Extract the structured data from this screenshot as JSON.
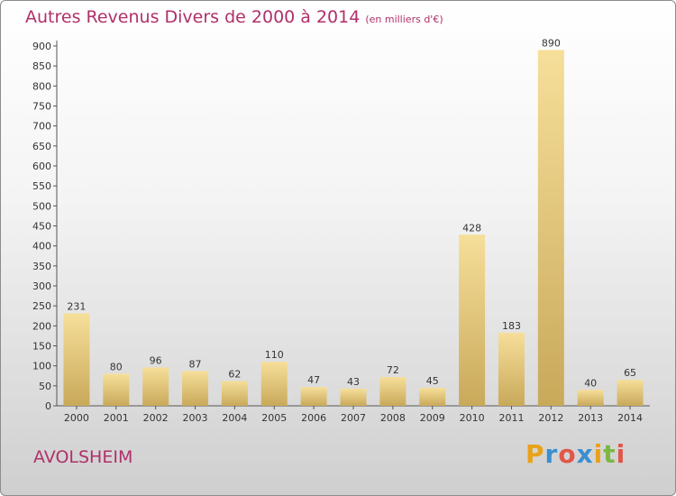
{
  "title": "Autres Revenus Divers de 2000 à 2014",
  "subtitle": "(en milliers d'€)",
  "commune": "AVOLSHEIM",
  "logo": {
    "letters": [
      "P",
      "r",
      "o",
      "x",
      "i",
      "t",
      "i"
    ],
    "colors": [
      "#e8a21a",
      "#3a8fd0",
      "#e2564a",
      "#3a8fd0",
      "#e8a21a",
      "#7cb742",
      "#e2564a"
    ]
  },
  "chart_data": {
    "type": "bar",
    "categories": [
      "2000",
      "2001",
      "2002",
      "2003",
      "2004",
      "2005",
      "2006",
      "2007",
      "2008",
      "2009",
      "2010",
      "2011",
      "2012",
      "2013",
      "2014"
    ],
    "values": [
      231,
      80,
      96,
      87,
      62,
      110,
      47,
      43,
      72,
      45,
      428,
      183,
      890,
      40,
      65
    ],
    "ylim": [
      0,
      900
    ],
    "yticks": [
      0,
      50,
      100,
      150,
      200,
      250,
      300,
      350,
      400,
      450,
      500,
      550,
      600,
      650,
      700,
      750,
      800,
      850,
      900
    ],
    "grid": false,
    "colors": {
      "bar_top": "#f6df9a",
      "bar_bottom": "#c9a95a",
      "axis": "#555555"
    }
  }
}
